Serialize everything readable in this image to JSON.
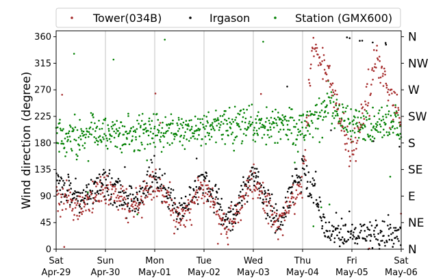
{
  "chart_data": {
    "type": "scatter",
    "ylabel": "Wind direction (degree)",
    "xlabel": "",
    "ylim": [
      0,
      370
    ],
    "yticks": [
      0,
      45,
      90,
      135,
      180,
      225,
      270,
      315,
      360
    ],
    "xlim": [
      0,
      7
    ],
    "xticks": [
      {
        "x": 0,
        "day": "Sat",
        "date": "Apr-29"
      },
      {
        "x": 1,
        "day": "Sun",
        "date": "Apr-30"
      },
      {
        "x": 2,
        "day": "Mon",
        "date": "May-01"
      },
      {
        "x": 3,
        "day": "Tue",
        "date": "May-02"
      },
      {
        "x": 4,
        "day": "Wed",
        "date": "May-03"
      },
      {
        "x": 5,
        "day": "Thu",
        "date": "May-04"
      },
      {
        "x": 6,
        "day": "Fri",
        "date": "May-05"
      },
      {
        "x": 7,
        "day": "Sat",
        "date": "May-06"
      }
    ],
    "compass": [
      {
        "deg": 360,
        "label": "N"
      },
      {
        "deg": 315,
        "label": "NW"
      },
      {
        "deg": 270,
        "label": "W"
      },
      {
        "deg": 225,
        "label": "SW"
      },
      {
        "deg": 180,
        "label": "S"
      },
      {
        "deg": 135,
        "label": "SE"
      },
      {
        "deg": 90,
        "label": "E"
      },
      {
        "deg": 45,
        "label": "NE"
      },
      {
        "deg": 0,
        "label": "N"
      }
    ],
    "grid": "vertical",
    "legend_position": "top",
    "series": [
      {
        "name": "Irgason",
        "color": "#000000",
        "trend_x": [
          0,
          0.5,
          1,
          1.5,
          2,
          2.5,
          3,
          3.5,
          4,
          4.5,
          5,
          5.5,
          6,
          6.5,
          7
        ],
        "trend_y": [
          110,
          80,
          115,
          75,
          125,
          55,
          120,
          40,
          130,
          40,
          140,
          30,
          25,
          20,
          25
        ]
      },
      {
        "name": "Tower(034B)",
        "color": "#a52a2a",
        "trend_x": [
          0,
          0.5,
          1,
          1.5,
          2,
          2.5,
          3,
          3.5,
          4,
          4.5,
          5,
          5.2,
          5.5,
          6,
          6.5,
          7
        ],
        "trend_y": [
          95,
          70,
          105,
          65,
          115,
          45,
          105,
          35,
          120,
          35,
          110,
          350,
          300,
          160,
          320,
          220
        ]
      },
      {
        "name": "Station (GMX600)",
        "color": "#008000",
        "trend_x": [
          0,
          1,
          2,
          3,
          4,
          5,
          5.5,
          6,
          7
        ],
        "trend_y": [
          190,
          195,
          200,
          205,
          210,
          205,
          240,
          215,
          210
        ]
      }
    ]
  }
}
